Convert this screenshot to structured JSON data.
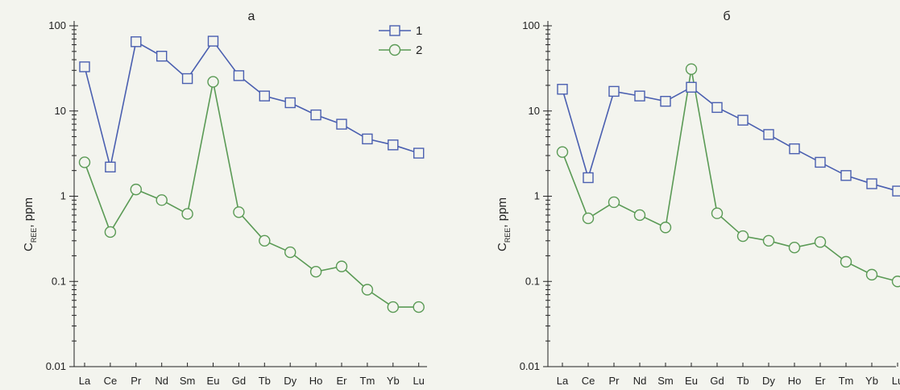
{
  "chart_data": [
    {
      "type": "line",
      "title": "а",
      "ylabel": "C",
      "ylabel_sub": "REE",
      "ylabel_unit": ", ppm",
      "yscale": "log",
      "ylim": [
        0.01,
        100
      ],
      "yticks": [
        "0.01",
        "0.1",
        "1",
        "10",
        "100"
      ],
      "categories": [
        "La",
        "Ce",
        "Pr",
        "Nd",
        "Sm",
        "Eu",
        "Gd",
        "Tb",
        "Dy",
        "Ho",
        "Er",
        "Tm",
        "Yb",
        "Lu"
      ],
      "legend": "top-right",
      "series": [
        {
          "name": "1",
          "marker": "square",
          "color": "#4a5fb0",
          "values": [
            33,
            2.2,
            65,
            44,
            24,
            66,
            26,
            15,
            12.5,
            9,
            7,
            4.7,
            4,
            3.2
          ]
        },
        {
          "name": "2",
          "marker": "circle",
          "color": "#5a9a55",
          "values": [
            2.5,
            0.38,
            1.2,
            0.9,
            0.62,
            22,
            0.65,
            0.3,
            0.22,
            0.13,
            0.15,
            0.08,
            0.05,
            0.05
          ]
        }
      ]
    },
    {
      "type": "line",
      "title": "б",
      "ylabel": "C",
      "ylabel_sub": "REE",
      "ylabel_unit": ", ppm",
      "yscale": "log",
      "ylim": [
        0.01,
        100
      ],
      "yticks": [
        "0.01",
        "0.1",
        "1",
        "10",
        "100"
      ],
      "categories": [
        "La",
        "Ce",
        "Pr",
        "Nd",
        "Sm",
        "Eu",
        "Gd",
        "Tb",
        "Dy",
        "Ho",
        "Er",
        "Tm",
        "Yb",
        "Lu"
      ],
      "series": [
        {
          "name": "1",
          "marker": "square",
          "color": "#4a5fb0",
          "values": [
            18,
            1.65,
            17,
            15,
            13,
            19,
            11,
            7.8,
            5.3,
            3.6,
            2.5,
            1.75,
            1.4,
            1.15
          ]
        },
        {
          "name": "2",
          "marker": "circle",
          "color": "#5a9a55",
          "values": [
            3.3,
            0.55,
            0.85,
            0.6,
            0.43,
            31,
            0.63,
            0.34,
            0.3,
            0.25,
            0.29,
            0.17,
            0.12,
            0.1
          ]
        }
      ]
    }
  ]
}
